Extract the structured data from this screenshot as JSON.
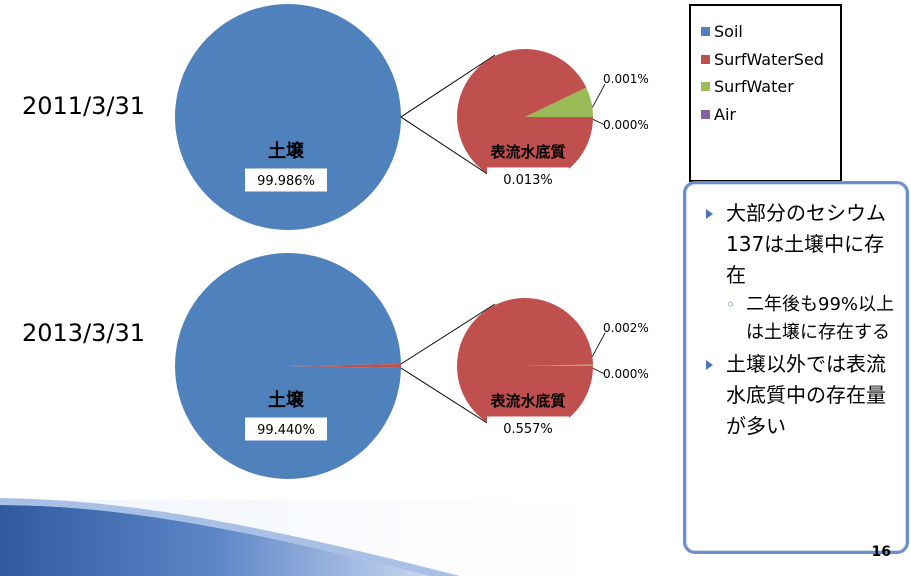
{
  "slide": {
    "page_number": "16",
    "dates": [
      "2011/3/31",
      "2013/3/31"
    ]
  },
  "legend": {
    "items": [
      {
        "label": "Soil",
        "color": "#4f81bd"
      },
      {
        "label": "SurfWaterSed",
        "color": "#c0504d"
      },
      {
        "label": "SurfWater",
        "color": "#9bbb59"
      },
      {
        "label": "Air",
        "color": "#8064a2"
      }
    ]
  },
  "notes": [
    {
      "type": "bullet",
      "text": "大部分のセシウム137は土壌中に存在"
    },
    {
      "type": "sub",
      "text": "二年後も99%以上は土壌に存在する"
    },
    {
      "type": "bullet",
      "text": "土壌以外では表流水底質中の存在量が多い"
    }
  ],
  "chart_data": [
    {
      "type": "pie",
      "title": "2011/3/31",
      "main_pie": {
        "categories": [
          "土壌"
        ],
        "values": [
          99.986
        ],
        "labels": [
          "土壌",
          "99.986%"
        ]
      },
      "secondary_pie": {
        "categories": [
          "SurfWaterSed",
          "SurfWater",
          "Air"
        ],
        "values": [
          0.013,
          0.001,
          0.0
        ],
        "labels": [
          "表流水底質",
          "0.013%",
          "0.001%",
          "0.000%"
        ]
      }
    },
    {
      "type": "pie",
      "title": "2013/3/31",
      "main_pie": {
        "categories": [
          "土壌"
        ],
        "values": [
          99.44
        ],
        "labels": [
          "土壌",
          "99.440%"
        ]
      },
      "secondary_pie": {
        "categories": [
          "SurfWaterSed",
          "SurfWater",
          "Air"
        ],
        "values": [
          0.557,
          0.002,
          0.0
        ],
        "labels": [
          "表流水底質",
          "0.557%",
          "0.002%",
          "0.000%"
        ]
      }
    }
  ]
}
